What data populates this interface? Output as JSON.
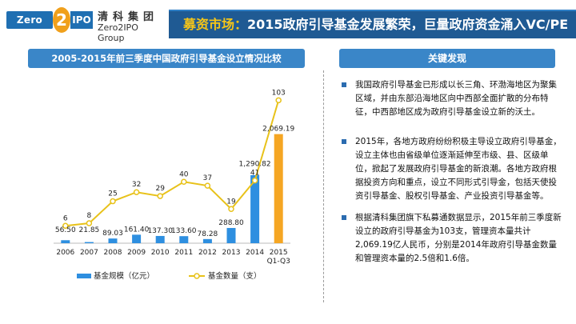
{
  "header": {
    "logo_mark_left": "Zero",
    "logo_mark_digit": "2",
    "logo_mark_right": "IPO",
    "logo_cn": "清科集团",
    "logo_en": "Zero2IPO Group",
    "title_prefix": "募资市场：",
    "title_main": "2015政府引导基金发展繁荣，巨量政府资金涌入VC/PE"
  },
  "chart_panel": {
    "heading": "2005-2015年前三季度中国政府引导基金设立情况比较"
  },
  "findings_panel": {
    "heading": "关键发现",
    "items": [
      "我国政府引导基金已形成以长三角、环渤海地区为聚集区域，并由东部沿海地区向中西部全面扩散的分布特征，中西部地区成为政府引导基金设立新的沃土。",
      "2015年，各地方政府纷纷积极主导设立政府引导基金，设立主体也由省级单位逐渐延伸至市级、县、区级单位，掀起了发展政府引导基金的新浪潮。各地方政府根据投资方向和重点，设立不同形式引导金，包括天使投资引导基金、股权引导基金、产业投资引导基金等。",
      "根据清科集团旗下私募通数据显示，2015年前三季度新设立的政府引导基金为103支，管理资本量共计2,069.19亿人民币，分别是2014年政府引导基金数量和管理资本量的2.5倍和1.6倍。"
    ]
  },
  "chart_data": {
    "type": "bar",
    "categories": [
      "2006",
      "2007",
      "2008",
      "2009",
      "2010",
      "2011",
      "2012",
      "2013",
      "2014",
      "2015\nQ1-Q3"
    ],
    "series": [
      {
        "name": "基金规模（亿元）",
        "kind": "bar",
        "values": [
          56.5,
          21.85,
          89.03,
          161.4,
          137.3,
          133.6,
          78.28,
          288.8,
          1290.82,
          2069.19
        ],
        "labels": [
          "56.50",
          "21.85",
          "89.03",
          "161.40",
          "137.30",
          "133.60",
          "78.28",
          "288.80",
          "1,290.82",
          "2,069.19"
        ],
        "colors": [
          "#2e8fe0",
          "#2e8fe0",
          "#2e8fe0",
          "#2e8fe0",
          "#2e8fe0",
          "#2e8fe0",
          "#2e8fe0",
          "#2e8fe0",
          "#2e8fe0",
          "#f5a623"
        ]
      },
      {
        "name": "基金数量（支）",
        "kind": "line",
        "values": [
          6,
          8,
          25,
          32,
          29,
          40,
          37,
          19,
          41,
          103
        ],
        "color": "#e8c21a"
      }
    ],
    "legend_position": "bottom",
    "grid": false
  }
}
